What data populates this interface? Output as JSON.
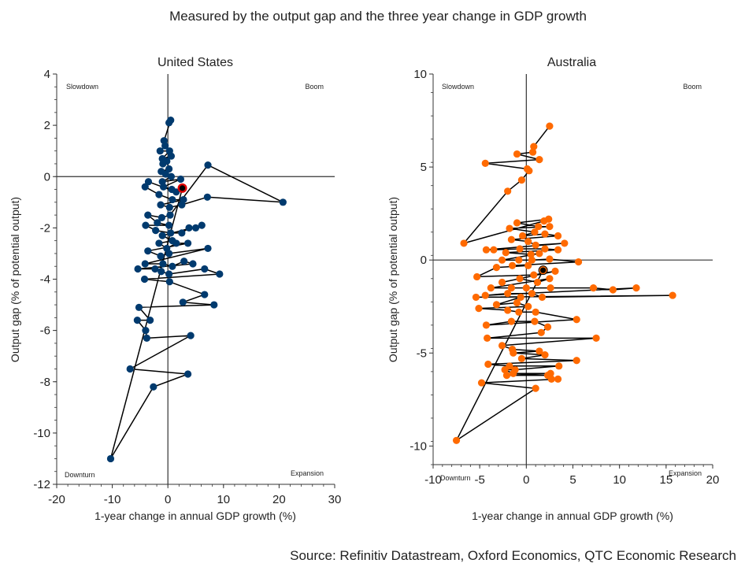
{
  "title": "Measured by the output gap and the three year change in GDP growth",
  "source": "Source: Refinitiv Datastream, Oxford Economics, QTC Economic Research",
  "chart_data": [
    {
      "type": "scatter",
      "title": "United States",
      "xlabel": "1-year change in annual GDP growth (%)",
      "ylabel": "Output gap (% of potential output)",
      "xlim": [
        -20,
        30
      ],
      "ylim": [
        -12,
        4
      ],
      "xticks": [
        -20,
        -10,
        0,
        10,
        20,
        30
      ],
      "yticks": [
        -12,
        -10,
        -8,
        -6,
        -4,
        -2,
        0,
        2,
        4
      ],
      "quadrants": {
        "top_left": "Slowdown",
        "top_right": "Boom",
        "bottom_left": "Downturn",
        "bottom_right": "Expansion"
      },
      "grid": false,
      "connected": true,
      "point_color": "#003a6e",
      "line_color": "#000000",
      "latest_color": "#e00000",
      "latest": [
        2.6,
        -0.45
      ],
      "points": [
        [
          0.2,
          2.1
        ],
        [
          0.5,
          2.2
        ],
        [
          -0.7,
          1.4
        ],
        [
          -0.5,
          1.2
        ],
        [
          -1.4,
          1.0
        ],
        [
          0.3,
          1.0
        ],
        [
          -1.0,
          0.7
        ],
        [
          0.6,
          0.8
        ],
        [
          -0.9,
          0.5
        ],
        [
          -0.2,
          0.6
        ],
        [
          0.2,
          0.3
        ],
        [
          -1.2,
          0.2
        ],
        [
          -0.4,
          0.1
        ],
        [
          0.6,
          0.0
        ],
        [
          -1.0,
          -0.2
        ],
        [
          2.3,
          -0.1
        ],
        [
          -0.8,
          -0.4
        ],
        [
          0.7,
          -0.5
        ],
        [
          1.5,
          -0.6
        ],
        [
          -3.5,
          -0.2
        ],
        [
          -4.1,
          -0.4
        ],
        [
          -1.6,
          -0.7
        ],
        [
          0.8,
          -0.9
        ],
        [
          2.8,
          -0.9
        ],
        [
          -1.3,
          -1.1
        ],
        [
          0.3,
          -1.2
        ],
        [
          2.5,
          -1.1
        ],
        [
          7.1,
          -0.8
        ],
        [
          20.7,
          -1.0
        ],
        [
          7.2,
          0.45
        ],
        [
          0.4,
          -1.5
        ],
        [
          -1.1,
          -1.6
        ],
        [
          -3.6,
          -1.5
        ],
        [
          -1.9,
          -1.8
        ],
        [
          0.2,
          -1.9
        ],
        [
          -4.0,
          -1.9
        ],
        [
          -2.2,
          -2.1
        ],
        [
          0.5,
          -2.2
        ],
        [
          2.5,
          -2.2
        ],
        [
          3.8,
          -2.0
        ],
        [
          5.0,
          -2.0
        ],
        [
          6.1,
          -1.9
        ],
        [
          -1.0,
          -2.3
        ],
        [
          0.8,
          -2.5
        ],
        [
          -1.6,
          -2.6
        ],
        [
          -0.2,
          -2.8
        ],
        [
          1.5,
          -2.6
        ],
        [
          3.6,
          -2.6
        ],
        [
          -3.6,
          -2.9
        ],
        [
          -1.3,
          -3.1
        ],
        [
          0.2,
          -3.0
        ],
        [
          7.2,
          -2.8
        ],
        [
          -4.1,
          -3.4
        ],
        [
          -0.9,
          -3.4
        ],
        [
          0.8,
          -3.5
        ],
        [
          2.9,
          -3.3
        ],
        [
          4.5,
          -3.4
        ],
        [
          -5.4,
          -3.6
        ],
        [
          -2.3,
          -3.6
        ],
        [
          -1.2,
          -3.7
        ],
        [
          0.2,
          -3.8
        ],
        [
          6.6,
          -3.6
        ],
        [
          9.3,
          -3.8
        ],
        [
          -4.2,
          -4.0
        ],
        [
          0.3,
          -4.1
        ],
        [
          6.6,
          -4.6
        ],
        [
          2.7,
          -4.9
        ],
        [
          8.3,
          -5.0
        ],
        [
          -5.2,
          -5.1
        ],
        [
          -3.2,
          -5.6
        ],
        [
          -5.5,
          -5.6
        ],
        [
          -4.0,
          -6.0
        ],
        [
          -3.8,
          -6.3
        ],
        [
          4.1,
          -6.2
        ],
        [
          -6.8,
          -7.5
        ],
        [
          3.6,
          -7.7
        ],
        [
          -2.6,
          -8.2
        ],
        [
          -10.3,
          -11.0
        ]
      ]
    },
    {
      "type": "scatter",
      "title": "Australia",
      "xlabel": "1-year change in annual GDP growth (%)",
      "ylabel": "Output gap (% of potential output)",
      "xlim": [
        -10,
        20
      ],
      "ylim": [
        -11,
        10
      ],
      "xticks": [
        -10,
        -5,
        0,
        5,
        10,
        15,
        20
      ],
      "yticks": [
        -10,
        -5,
        0,
        5,
        10
      ],
      "quadrants": {
        "top_left": "Slowdown",
        "top_right": "Boom",
        "bottom_left": "Downturn",
        "bottom_right": "Expansion"
      },
      "grid": false,
      "connected": true,
      "point_color": "#ff6a00",
      "line_color": "#000000",
      "latest_color": "#000000",
      "latest": [
        1.8,
        -0.55
      ],
      "points": [
        [
          2.5,
          7.2
        ],
        [
          0.8,
          6.1
        ],
        [
          0.7,
          5.8
        ],
        [
          -1.0,
          5.7
        ],
        [
          1.4,
          5.4
        ],
        [
          -4.4,
          5.2
        ],
        [
          0.1,
          4.9
        ],
        [
          0.3,
          4.8
        ],
        [
          -0.5,
          4.3
        ],
        [
          -2.0,
          3.7
        ],
        [
          -6.7,
          0.9
        ],
        [
          1.9,
          2.1
        ],
        [
          2.4,
          2.2
        ],
        [
          -1.0,
          2.0
        ],
        [
          1.3,
          1.8
        ],
        [
          2.5,
          1.8
        ],
        [
          -1.8,
          1.7
        ],
        [
          0.9,
          1.5
        ],
        [
          -0.4,
          1.3
        ],
        [
          2.0,
          1.4
        ],
        [
          3.4,
          1.3
        ],
        [
          -1.6,
          1.1
        ],
        [
          0.2,
          1.0
        ],
        [
          1.0,
          0.8
        ],
        [
          4.1,
          0.9
        ],
        [
          -4.3,
          0.55
        ],
        [
          -3.5,
          0.55
        ],
        [
          -0.7,
          0.6
        ],
        [
          2.0,
          0.6
        ],
        [
          3.4,
          0.55
        ],
        [
          -2.2,
          0.4
        ],
        [
          0.5,
          0.3
        ],
        [
          1.4,
          0.35
        ],
        [
          -2.6,
          0.0
        ],
        [
          -0.8,
          0.0
        ],
        [
          0.6,
          0.0
        ],
        [
          2.5,
          0.05
        ],
        [
          5.6,
          -0.1
        ],
        [
          -1.5,
          -0.3
        ],
        [
          0.2,
          -0.3
        ],
        [
          -3.2,
          -0.4
        ],
        [
          -5.3,
          -0.9
        ],
        [
          0.8,
          -0.8
        ],
        [
          3.1,
          -0.6
        ],
        [
          -2.6,
          -1.2
        ],
        [
          -0.7,
          -1.0
        ],
        [
          1.2,
          -1.2
        ],
        [
          2.5,
          -1.0
        ],
        [
          -3.8,
          -1.5
        ],
        [
          -1.6,
          -1.5
        ],
        [
          0.0,
          -1.5
        ],
        [
          2.6,
          -1.5
        ],
        [
          7.2,
          -1.5
        ],
        [
          9.3,
          -1.6
        ],
        [
          11.8,
          -1.5
        ],
        [
          -4.4,
          -1.9
        ],
        [
          -2.0,
          -1.8
        ],
        [
          0.6,
          -1.8
        ],
        [
          1.7,
          -2.0
        ],
        [
          15.7,
          -1.9
        ],
        [
          -5.4,
          -2.0
        ],
        [
          -0.6,
          -2.0
        ],
        [
          -3.2,
          -2.4
        ],
        [
          -1.0,
          -2.3
        ],
        [
          0.2,
          -2.5
        ],
        [
          -5.1,
          -2.6
        ],
        [
          -2.0,
          -2.7
        ],
        [
          -0.8,
          -2.8
        ],
        [
          1.0,
          -2.8
        ],
        [
          5.4,
          -3.2
        ],
        [
          -4.3,
          -3.5
        ],
        [
          -1.6,
          -3.3
        ],
        [
          0.9,
          -3.3
        ],
        [
          2.3,
          -3.6
        ],
        [
          1.6,
          -3.9
        ],
        [
          -4.2,
          -4.2
        ],
        [
          7.5,
          -4.2
        ],
        [
          -2.6,
          -4.6
        ],
        [
          -1.5,
          -4.8
        ],
        [
          1.4,
          -4.9
        ],
        [
          -1.4,
          -5.0
        ],
        [
          2.0,
          -5.1
        ],
        [
          -0.5,
          -5.3
        ],
        [
          5.4,
          -5.4
        ],
        [
          -4.1,
          -5.6
        ],
        [
          -1.8,
          -5.7
        ],
        [
          3.5,
          -5.7
        ],
        [
          -1.2,
          -5.9
        ],
        [
          -2.3,
          -5.9
        ],
        [
          -1.4,
          -6.1
        ],
        [
          2.6,
          -6.1
        ],
        [
          -2.1,
          -6.2
        ],
        [
          2.3,
          -6.2
        ],
        [
          2.7,
          -6.4
        ],
        [
          3.4,
          -6.4
        ],
        [
          -4.8,
          -6.6
        ],
        [
          1.0,
          -6.9
        ],
        [
          -7.5,
          -9.7
        ]
      ]
    }
  ]
}
